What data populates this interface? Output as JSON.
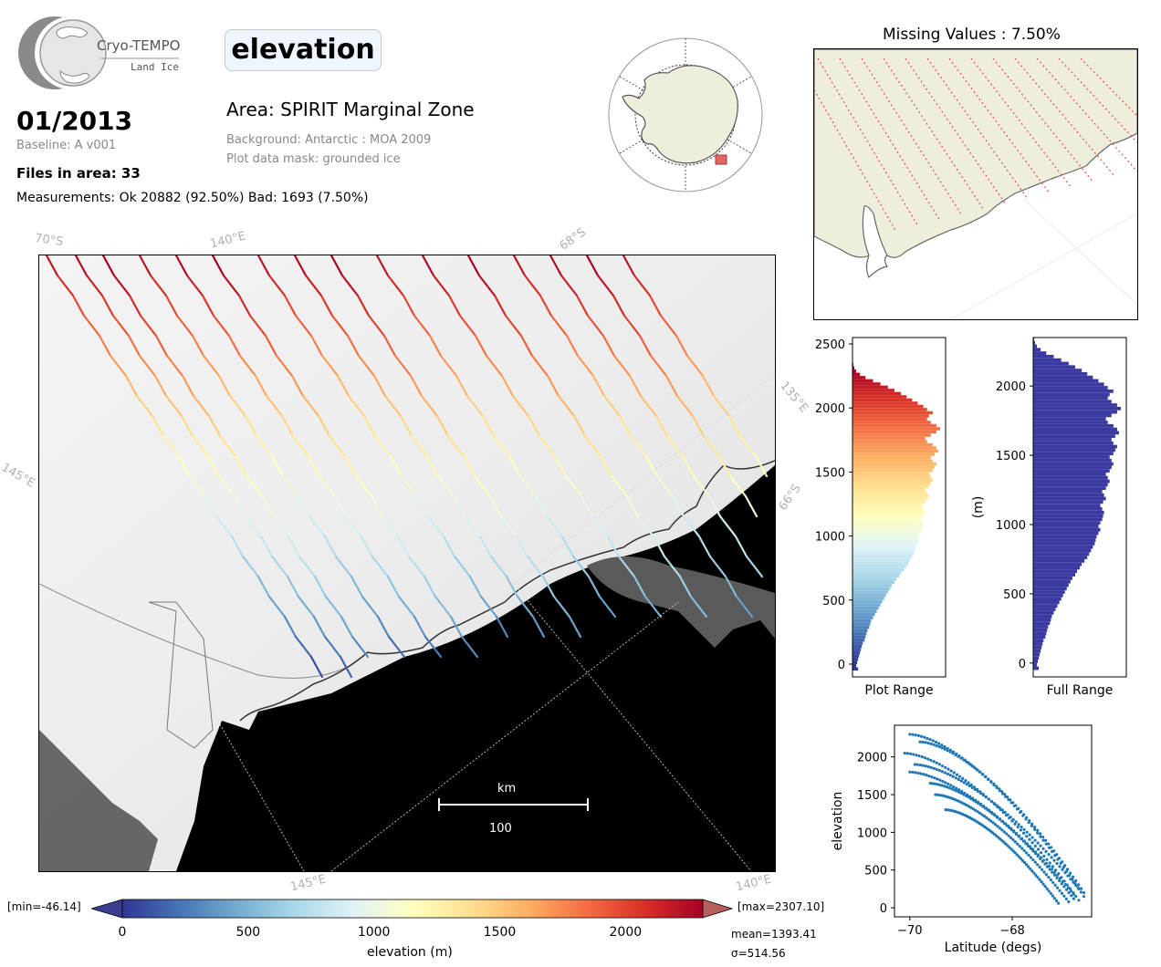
{
  "header": {
    "logo": {
      "name": "Cryo-TEMPO",
      "subtitle": "Land Ice"
    },
    "parameter": "elevation",
    "date": "01/2013",
    "baseline": "Baseline: A v001",
    "files": "Files in area: 33",
    "measurements": "Measurements: Ok 20882 (92.50%) Bad: 1693 (7.50%)",
    "area": "Area: SPIRIT Marginal Zone",
    "background": "Background: Antarctic : MOA 2009",
    "mask": "Plot data mask: grounded ice"
  },
  "main_map": {
    "graticule_labels": [
      "70°S",
      "140°E",
      "68°S",
      "135°E",
      "145°E",
      "66°S",
      "145°E",
      "140°E"
    ],
    "scalebar": {
      "unit": "km",
      "value": "100"
    }
  },
  "colorbar": {
    "label": "elevation (m)",
    "ticks": [
      "0",
      "500",
      "1000",
      "1500",
      "2000"
    ],
    "min_text": "[min=-46.14]",
    "max_text": "[max=2307.10]",
    "mean_text": "mean=1393.41",
    "std_text": "σ=514.56",
    "colors": [
      "#313695",
      "#4575b4",
      "#74add1",
      "#abd9e9",
      "#e0f3f8",
      "#ffffbf",
      "#fee090",
      "#fdae61",
      "#f46d43",
      "#d73027",
      "#a50026"
    ]
  },
  "missing_panel": {
    "title": "Missing Values : 7.50%"
  },
  "chart_data": [
    {
      "type": "bar",
      "orientation": "horizontal",
      "xlabel": "Plot Range",
      "ylim": [
        -100,
        2550
      ],
      "yticks": [
        0,
        500,
        1000,
        1500,
        2000,
        2500
      ],
      "bin_width": 25,
      "bins_start": -50,
      "counts": [
        6,
        4,
        5,
        6,
        7,
        8,
        9,
        10,
        11,
        13,
        14,
        15,
        16,
        18,
        19,
        20,
        22,
        24,
        26,
        28,
        30,
        32,
        34,
        36,
        38,
        40,
        42,
        45,
        47,
        50,
        52,
        55,
        58,
        60,
        62,
        64,
        66,
        67,
        68,
        70,
        72,
        70,
        72,
        74,
        75,
        76,
        74,
        72,
        75,
        78,
        76,
        74,
        78,
        80,
        82,
        80,
        78,
        82,
        84,
        86,
        84,
        82,
        86,
        88,
        90,
        86,
        84,
        88,
        92,
        90,
        86,
        80,
        78,
        84,
        90,
        94,
        90,
        84,
        80,
        82,
        86,
        80,
        76,
        70,
        64,
        58,
        52,
        45,
        38,
        30,
        22,
        14,
        8,
        4,
        2,
        1,
        0,
        0
      ]
    },
    {
      "type": "bar",
      "orientation": "horizontal",
      "xlabel": "Full Range",
      "ylabel": "(m)",
      "ylim": [
        -100,
        2350
      ],
      "yticks": [
        0,
        500,
        1000,
        1500,
        2000
      ],
      "bin_width": 25,
      "bins_start": -50,
      "color": "#3a3aa0"
    },
    {
      "type": "scatter",
      "xlabel": "Latitude (degs)",
      "ylabel": "elevation",
      "xlim": [
        -70.3,
        -66.45
      ],
      "ylim": [
        -120,
        2420
      ],
      "xticks": [
        -70,
        -68
      ],
      "yticks": [
        0,
        500,
        1000,
        1500,
        2000
      ],
      "color": "#1f77b4",
      "tracks": [
        {
          "lat_start": -70.0,
          "lat_end": -66.6,
          "elev_start": 2300,
          "elev_end": 150
        },
        {
          "lat_start": -69.8,
          "lat_end": -66.6,
          "elev_start": 2200,
          "elev_end": 200
        },
        {
          "lat_start": -70.1,
          "lat_end": -66.7,
          "elev_start": 2050,
          "elev_end": 100
        },
        {
          "lat_start": -69.9,
          "lat_end": -66.7,
          "elev_start": 1900,
          "elev_end": 250
        },
        {
          "lat_start": -70.0,
          "lat_end": -66.8,
          "elev_start": 1800,
          "elev_end": 180
        },
        {
          "lat_start": -69.6,
          "lat_end": -66.8,
          "elev_start": 1650,
          "elev_end": 120
        },
        {
          "lat_start": -69.5,
          "lat_end": -66.9,
          "elev_start": 1500,
          "elev_end": 80
        },
        {
          "lat_start": -69.3,
          "lat_end": -67.1,
          "elev_start": 1300,
          "elev_end": 60
        }
      ]
    }
  ]
}
